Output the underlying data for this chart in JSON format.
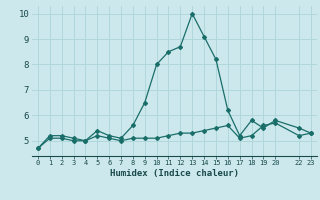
{
  "xlabel": "Humidex (Indice chaleur)",
  "bg_color": "#cce8ec",
  "grid_color": "#b0d8dc",
  "line_color": "#1a6e6a",
  "ylim": [
    4.4,
    10.3
  ],
  "xlim": [
    -0.5,
    23.5
  ],
  "yticks": [
    5,
    6,
    7,
    8,
    9,
    10
  ],
  "xticks": [
    0,
    1,
    2,
    3,
    4,
    5,
    6,
    7,
    8,
    9,
    10,
    11,
    12,
    13,
    14,
    15,
    16,
    17,
    18,
    19,
    20,
    22,
    23
  ],
  "xtick_labels": [
    "0",
    "1",
    "2",
    "3",
    "4",
    "5",
    "6",
    "7",
    "8",
    "9",
    "10",
    "11",
    "12",
    "13",
    "14",
    "15",
    "16",
    "17",
    "18",
    "19",
    "20",
    "22",
    "23"
  ],
  "line1_x": [
    0,
    1,
    2,
    3,
    4,
    5,
    6,
    7,
    8,
    9,
    10,
    11,
    12,
    13,
    14,
    15,
    16,
    17,
    18,
    19,
    20,
    22,
    23
  ],
  "line1_y": [
    4.7,
    5.2,
    5.2,
    5.1,
    5.0,
    5.4,
    5.2,
    5.1,
    5.6,
    6.5,
    8.0,
    8.5,
    8.7,
    10.0,
    9.1,
    8.2,
    6.2,
    5.2,
    5.8,
    5.5,
    5.8,
    5.5,
    5.3
  ],
  "line2_x": [
    0,
    1,
    2,
    3,
    4,
    5,
    6,
    7,
    8,
    9,
    10,
    11,
    12,
    13,
    14,
    15,
    16,
    17,
    18,
    19,
    20,
    22,
    23
  ],
  "line2_y": [
    4.7,
    5.1,
    5.1,
    5.0,
    5.0,
    5.2,
    5.1,
    5.0,
    5.1,
    5.1,
    5.1,
    5.2,
    5.3,
    5.3,
    5.4,
    5.5,
    5.6,
    5.1,
    5.2,
    5.6,
    5.7,
    5.2,
    5.3
  ]
}
